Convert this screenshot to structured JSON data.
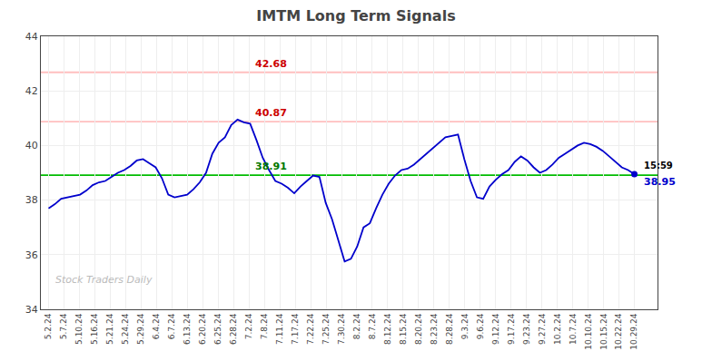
{
  "chart_data": {
    "type": "line",
    "title": "IMTM Long Term Signals",
    "x": [
      0,
      0.4086,
      0.8172,
      1.2258,
      1.6344,
      2.043,
      2.4516,
      2.8602,
      3.2688,
      3.6774,
      4.086,
      4.4946,
      4.9032,
      5.3118,
      5.7204,
      6.129,
      6.5376,
      6.9462,
      7.3548,
      7.7634,
      8.172,
      8.5806,
      8.9892,
      9.3978,
      9.8065,
      10.2151,
      10.6237,
      11.0323,
      11.4409,
      11.8495,
      12.2581,
      12.6667,
      13.0753,
      13.4839,
      13.8925,
      14.3011,
      14.7097,
      15.1183,
      15.5269,
      15.9355,
      16.3441,
      16.7527,
      17.1613,
      17.5699,
      17.9785,
      18.3871,
      18.7957,
      19.2043,
      19.6129,
      20.0215,
      20.4301,
      20.8387,
      21.2473,
      21.6559,
      22.0645,
      22.4731,
      22.8817,
      23.2903,
      23.6989,
      24.1075,
      24.5161,
      24.9247,
      25.3333,
      25.7419,
      26.1505,
      26.5591,
      26.9677,
      27.3763,
      27.7849,
      28.1935,
      28.6022,
      29.0108,
      29.4194,
      29.828,
      30.2366,
      30.6452,
      31.0538,
      31.4624,
      31.871,
      32.2796,
      32.6882,
      33.0968,
      33.5054,
      33.914,
      34.3226,
      34.7312,
      35.1398,
      35.5484,
      35.957,
      36.3656,
      36.7742,
      37.1828,
      37.5914,
      38
    ],
    "values": [
      37.7,
      37.85,
      38.05,
      38.1,
      38.15,
      38.2,
      38.35,
      38.55,
      38.65,
      38.7,
      38.85,
      39.0,
      39.1,
      39.25,
      39.45,
      39.5,
      39.35,
      39.2,
      38.8,
      38.2,
      38.1,
      38.15,
      38.2,
      38.4,
      38.65,
      39.0,
      39.7,
      40.1,
      40.3,
      40.75,
      40.95,
      40.85,
      40.8,
      40.2,
      39.55,
      39.1,
      38.7,
      38.6,
      38.45,
      38.25,
      38.5,
      38.7,
      38.9,
      38.85,
      37.9,
      37.3,
      36.5,
      35.75,
      35.85,
      36.3,
      37.0,
      37.15,
      37.7,
      38.2,
      38.6,
      38.9,
      39.1,
      39.15,
      39.3,
      39.5,
      39.7,
      39.9,
      40.1,
      40.3,
      40.35,
      40.4,
      39.5,
      38.7,
      38.1,
      38.05,
      38.5,
      38.75,
      38.95,
      39.1,
      39.4,
      39.6,
      39.45,
      39.2,
      39.0,
      39.1,
      39.3,
      39.55,
      39.7,
      39.85,
      40.0,
      40.1,
      40.05,
      39.95,
      39.8,
      39.6,
      39.4,
      39.2,
      39.1,
      38.95
    ],
    "color": "#0000cc",
    "xlim": [
      -0.5,
      39.5
    ],
    "xticks": [
      {
        "value": 0,
        "label": "5.2.24"
      },
      {
        "value": 1,
        "label": "5.7.24"
      },
      {
        "value": 2,
        "label": "5.10.24"
      },
      {
        "value": 3,
        "label": "5.16.24"
      },
      {
        "value": 4,
        "label": "5.21.24"
      },
      {
        "value": 5,
        "label": "5.24.24"
      },
      {
        "value": 6,
        "label": "5.29.24"
      },
      {
        "value": 7,
        "label": "6.4.24"
      },
      {
        "value": 8,
        "label": "6.7.24"
      },
      {
        "value": 9,
        "label": "6.13.24"
      },
      {
        "value": 10,
        "label": "6.20.24"
      },
      {
        "value": 11,
        "label": "6.25.24"
      },
      {
        "value": 12,
        "label": "6.28.24"
      },
      {
        "value": 13,
        "label": "7.2.24"
      },
      {
        "value": 14,
        "label": "7.8.24"
      },
      {
        "value": 15,
        "label": "7.11.24"
      },
      {
        "value": 16,
        "label": "7.17.24"
      },
      {
        "value": 17,
        "label": "7.22.24"
      },
      {
        "value": 18,
        "label": "7.25.24"
      },
      {
        "value": 19,
        "label": "7.30.24"
      },
      {
        "value": 20,
        "label": "8.2.24"
      },
      {
        "value": 21,
        "label": "8.7.24"
      },
      {
        "value": 22,
        "label": "8.12.24"
      },
      {
        "value": 23,
        "label": "8.15.24"
      },
      {
        "value": 24,
        "label": "8.20.24"
      },
      {
        "value": 25,
        "label": "8.23.24"
      },
      {
        "value": 26,
        "label": "8.28.24"
      },
      {
        "value": 27,
        "label": "9.3.24"
      },
      {
        "value": 28,
        "label": "9.6.24"
      },
      {
        "value": 29,
        "label": "9.12.24"
      },
      {
        "value": 30,
        "label": "9.17.24"
      },
      {
        "value": 31,
        "label": "9.23.24"
      },
      {
        "value": 32,
        "label": "9.27.24"
      },
      {
        "value": 33,
        "label": "10.2.24"
      },
      {
        "value": 34,
        "label": "10.7.24"
      },
      {
        "value": 35,
        "label": "10.10.24"
      },
      {
        "value": 36,
        "label": "10.15.24"
      },
      {
        "value": 37,
        "label": "10.22.24"
      },
      {
        "value": 38,
        "label": "10.29.24"
      }
    ],
    "ylim": [
      34.0,
      44.0
    ],
    "yticks": [
      34,
      36,
      38,
      40,
      42,
      44
    ],
    "grid": true,
    "reference_lines": [
      {
        "value": 42.68,
        "label": "42.68",
        "color": "#ffb0b0",
        "label_color": "#cc0000"
      },
      {
        "value": 40.87,
        "label": "40.87",
        "color": "#ffb0b0",
        "label_color": "#cc0000"
      },
      {
        "value": 38.91,
        "label": "38.91",
        "color": "#00bb00",
        "label_color": "#007700"
      }
    ],
    "annotations": [
      {
        "text": "15:59",
        "color": "#000000"
      },
      {
        "text": "38.95",
        "color": "#0000cc"
      },
      {
        "text": "Stock Traders Daily",
        "color": "#bbbbbb"
      }
    ]
  }
}
